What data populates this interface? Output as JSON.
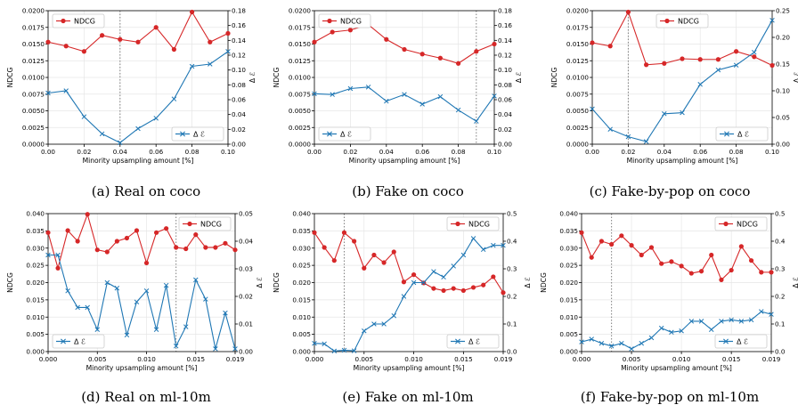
{
  "colors": {
    "ndcg": "#d62728",
    "delta": "#1f77b4",
    "guide": "#7f7f7f",
    "axis": "#000000"
  },
  "chart_data": [
    {
      "type": "line",
      "caption": "(a) Real on coco",
      "xlabel": "Minority upsampling amount [%]",
      "ylabel_left": "NDCG",
      "ylabel_right": "Δ ℰ",
      "xlim": [
        0,
        0.1
      ],
      "ylim_left": [
        0,
        0.02
      ],
      "ylim_right": [
        0,
        0.18
      ],
      "x_ticks": [
        0,
        0.02,
        0.04,
        0.06,
        0.08,
        0.1
      ],
      "x_tick_labels": [
        "0.00",
        "0.02",
        "0.04",
        "0.06",
        "0.08",
        "0.10"
      ],
      "y_left_ticks": [
        0,
        0.0025,
        0.005,
        0.0075,
        0.01,
        0.0125,
        0.015,
        0.0175,
        0.02
      ],
      "y_left_tick_labels": [
        "0.0000",
        "0.0025",
        "0.0050",
        "0.0075",
        "0.0100",
        "0.0125",
        "0.0150",
        "0.0175",
        "0.0200"
      ],
      "y_right_ticks": [
        0,
        0.02,
        0.04,
        0.06,
        0.08,
        0.1,
        0.12,
        0.14,
        0.16,
        0.18
      ],
      "y_right_tick_labels": [
        "0.00",
        "0.02",
        "0.04",
        "0.06",
        "0.08",
        "0.10",
        "0.12",
        "0.14",
        "0.16",
        "0.18"
      ],
      "vline": 0.04,
      "grid": true,
      "legend": {
        "ndcg_position": "top-left",
        "delta_position": "bottom-right"
      },
      "x": [
        0,
        0.01,
        0.02,
        0.03,
        0.04,
        0.05,
        0.06,
        0.07,
        0.08,
        0.09,
        0.1
      ],
      "series": [
        {
          "name": "NDCG",
          "axis": "left",
          "marker": "circle",
          "values": [
            0.0153,
            0.0147,
            0.0139,
            0.0163,
            0.0157,
            0.0153,
            0.0175,
            0.0142,
            0.0198,
            0.0153,
            0.0166
          ]
        },
        {
          "name": "Δ ℰ",
          "axis": "right",
          "marker": "x",
          "values": [
            0.069,
            0.072,
            0.037,
            0.014,
            0.002,
            0.021,
            0.035,
            0.061,
            0.105,
            0.108,
            0.125
          ]
        }
      ]
    },
    {
      "type": "line",
      "caption": "(b) Fake on coco",
      "xlabel": "Minority upsampling amount [%]",
      "ylabel_left": "NDCG",
      "ylabel_right": "Δ ℰ",
      "xlim": [
        0,
        0.1
      ],
      "ylim_left": [
        0,
        0.02
      ],
      "ylim_right": [
        0,
        0.18
      ],
      "x_ticks": [
        0,
        0.02,
        0.04,
        0.06,
        0.08,
        0.1
      ],
      "x_tick_labels": [
        "0.00",
        "0.02",
        "0.04",
        "0.06",
        "0.08",
        "0.10"
      ],
      "y_left_ticks": [
        0,
        0.0025,
        0.005,
        0.0075,
        0.01,
        0.0125,
        0.015,
        0.0175,
        0.02
      ],
      "y_left_tick_labels": [
        "0.0000",
        "0.0025",
        "0.0050",
        "0.0075",
        "0.0100",
        "0.0125",
        "0.0150",
        "0.0175",
        "0.0200"
      ],
      "y_right_ticks": [
        0,
        0.02,
        0.04,
        0.06,
        0.08,
        0.1,
        0.12,
        0.14,
        0.16,
        0.18
      ],
      "y_right_tick_labels": [
        "0.00",
        "0.02",
        "0.04",
        "0.06",
        "0.08",
        "0.10",
        "0.12",
        "0.14",
        "0.16",
        "0.18"
      ],
      "vline": 0.09,
      "grid": true,
      "legend": {
        "ndcg_position": "top-left",
        "delta_position": "bottom-left"
      },
      "x": [
        0,
        0.01,
        0.02,
        0.03,
        0.04,
        0.05,
        0.06,
        0.07,
        0.08,
        0.09,
        0.1
      ],
      "series": [
        {
          "name": "NDCG",
          "axis": "left",
          "marker": "circle",
          "values": [
            0.0153,
            0.0168,
            0.0171,
            0.0179,
            0.0157,
            0.0142,
            0.0135,
            0.0129,
            0.0121,
            0.0139,
            0.015
          ]
        },
        {
          "name": "Δ ℰ",
          "axis": "right",
          "marker": "x",
          "values": [
            0.068,
            0.067,
            0.075,
            0.077,
            0.058,
            0.067,
            0.054,
            0.064,
            0.046,
            0.031,
            0.065
          ]
        }
      ]
    },
    {
      "type": "line",
      "caption": "(c) Fake-by-pop on coco",
      "xlabel": "Minority upsampling amount [%]",
      "ylabel_left": "NDCG",
      "ylabel_right": "Δ ℰ",
      "xlim": [
        0,
        0.1
      ],
      "ylim_left": [
        0,
        0.02
      ],
      "ylim_right": [
        0,
        0.25
      ],
      "x_ticks": [
        0,
        0.02,
        0.04,
        0.06,
        0.08,
        0.1
      ],
      "x_tick_labels": [
        "0.00",
        "0.02",
        "0.04",
        "0.06",
        "0.08",
        "0.10"
      ],
      "y_left_ticks": [
        0,
        0.0025,
        0.005,
        0.0075,
        0.01,
        0.0125,
        0.015,
        0.0175,
        0.02
      ],
      "y_left_tick_labels": [
        "0.0000",
        "0.0025",
        "0.0050",
        "0.0075",
        "0.0100",
        "0.0125",
        "0.0150",
        "0.0175",
        "0.0200"
      ],
      "y_right_ticks": [
        0,
        0.05,
        0.1,
        0.15,
        0.2,
        0.25
      ],
      "y_right_tick_labels": [
        "0.00",
        "0.05",
        "0.10",
        "0.15",
        "0.20",
        "0.25"
      ],
      "vline": 0.02,
      "grid": true,
      "legend": {
        "ndcg_position": "top-center",
        "delta_position": "bottom-right"
      },
      "x": [
        0,
        0.01,
        0.02,
        0.03,
        0.04,
        0.05,
        0.06,
        0.07,
        0.08,
        0.09,
        0.1
      ],
      "series": [
        {
          "name": "NDCG",
          "axis": "left",
          "marker": "circle",
          "values": [
            0.0152,
            0.0147,
            0.0198,
            0.0119,
            0.0121,
            0.0128,
            0.0127,
            0.0127,
            0.0139,
            0.0131,
            0.0118
          ]
        },
        {
          "name": "Δ ℰ",
          "axis": "right",
          "marker": "x",
          "values": [
            0.066,
            0.028,
            0.014,
            0.005,
            0.057,
            0.059,
            0.112,
            0.139,
            0.148,
            0.172,
            0.232
          ]
        }
      ]
    },
    {
      "type": "line",
      "caption": "(d) Real on ml-10m",
      "xlabel": "Minority upsampling amount [%]",
      "ylabel_left": "NDCG",
      "ylabel_right": "Δ ℰ",
      "xlim": [
        0,
        0.019
      ],
      "ylim_left": [
        0,
        0.04
      ],
      "ylim_right": [
        0,
        0.05
      ],
      "x_ticks": [
        0,
        0.005,
        0.01,
        0.015,
        0.019
      ],
      "x_tick_labels": [
        "0.000",
        "0.005",
        "0.010",
        "0.015",
        "0.019"
      ],
      "y_left_ticks": [
        0,
        0.005,
        0.01,
        0.015,
        0.02,
        0.025,
        0.03,
        0.035,
        0.04
      ],
      "y_left_tick_labels": [
        "0.000",
        "0.005",
        "0.010",
        "0.015",
        "0.020",
        "0.025",
        "0.030",
        "0.035",
        "0.040"
      ],
      "y_right_ticks": [
        0,
        0.01,
        0.02,
        0.03,
        0.04,
        0.05
      ],
      "y_right_tick_labels": [
        "0.00",
        "0.01",
        "0.02",
        "0.03",
        "0.04",
        "0.05"
      ],
      "vline": 0.013,
      "grid": true,
      "legend": {
        "ndcg_position": "top-right",
        "delta_position": "bottom-left"
      },
      "x": [
        0,
        0.001,
        0.002,
        0.003,
        0.004,
        0.005,
        0.006,
        0.007,
        0.008,
        0.009,
        0.01,
        0.011,
        0.012,
        0.013,
        0.014,
        0.015,
        0.016,
        0.017,
        0.018,
        0.019
      ],
      "series": [
        {
          "name": "NDCG",
          "axis": "left",
          "marker": "circle",
          "values": [
            0.0345,
            0.0242,
            0.0351,
            0.032,
            0.0398,
            0.0295,
            0.0289,
            0.032,
            0.0329,
            0.0351,
            0.0257,
            0.0345,
            0.0357,
            0.0302,
            0.0298,
            0.0339,
            0.0302,
            0.0302,
            0.0314,
            0.0295
          ]
        },
        {
          "name": "Δ ℰ",
          "axis": "right",
          "marker": "x",
          "values": [
            0.035,
            0.035,
            0.022,
            0.016,
            0.016,
            0.008,
            0.025,
            0.023,
            0.006,
            0.018,
            0.022,
            0.008,
            0.024,
            0.002,
            0.009,
            0.026,
            0.019,
            0.001,
            0.014,
            0.001
          ]
        }
      ]
    },
    {
      "type": "line",
      "caption": "(e) Fake on ml-10m",
      "xlabel": "Minority upsampling amount [%]",
      "ylabel_left": "NDCG",
      "ylabel_right": "Δ ℰ",
      "xlim": [
        0,
        0.019
      ],
      "ylim_left": [
        0,
        0.04
      ],
      "ylim_right": [
        0,
        0.5
      ],
      "x_ticks": [
        0,
        0.005,
        0.01,
        0.015,
        0.019
      ],
      "x_tick_labels": [
        "0.000",
        "0.005",
        "0.010",
        "0.015",
        "0.019"
      ],
      "y_left_ticks": [
        0,
        0.005,
        0.01,
        0.015,
        0.02,
        0.025,
        0.03,
        0.035,
        0.04
      ],
      "y_left_tick_labels": [
        "0.000",
        "0.005",
        "0.010",
        "0.015",
        "0.020",
        "0.025",
        "0.030",
        "0.035",
        "0.040"
      ],
      "y_right_ticks": [
        0,
        0.1,
        0.2,
        0.3,
        0.4,
        0.5
      ],
      "y_right_tick_labels": [
        "0.0",
        "0.1",
        "0.2",
        "0.3",
        "0.4",
        "0.5"
      ],
      "vline": 0.003,
      "grid": true,
      "legend": {
        "ndcg_position": "top-right",
        "delta_position": "bottom-right"
      },
      "x": [
        0,
        0.001,
        0.002,
        0.003,
        0.004,
        0.005,
        0.006,
        0.007,
        0.008,
        0.009,
        0.01,
        0.011,
        0.012,
        0.013,
        0.014,
        0.015,
        0.016,
        0.017,
        0.018,
        0.019
      ],
      "series": [
        {
          "name": "NDCG",
          "axis": "left",
          "marker": "circle",
          "values": [
            0.0345,
            0.0302,
            0.0264,
            0.0345,
            0.032,
            0.0242,
            0.028,
            0.0258,
            0.0289,
            0.0202,
            0.0223,
            0.0199,
            0.0183,
            0.0177,
            0.0183,
            0.0177,
            0.0186,
            0.0193,
            0.0217,
            0.0171
          ]
        },
        {
          "name": "Δ ℰ",
          "axis": "right",
          "marker": "x",
          "values": [
            0.03,
            0.028,
            0.002,
            0.005,
            0.003,
            0.075,
            0.1,
            0.1,
            0.13,
            0.2,
            0.25,
            0.25,
            0.29,
            0.27,
            0.31,
            0.35,
            0.41,
            0.37,
            0.385,
            0.385
          ]
        }
      ]
    },
    {
      "type": "line",
      "caption": "(f) Fake-by-pop on ml-10m",
      "xlabel": "Minority upsampling amount [%]",
      "ylabel_left": "NDCG",
      "ylabel_right": "Δ ℰ",
      "xlim": [
        0,
        0.019
      ],
      "ylim_left": [
        0,
        0.04
      ],
      "ylim_right": [
        0,
        0.5
      ],
      "x_ticks": [
        0,
        0.005,
        0.01,
        0.015,
        0.019
      ],
      "x_tick_labels": [
        "0.000",
        "0.005",
        "0.010",
        "0.015",
        "0.019"
      ],
      "y_left_ticks": [
        0,
        0.005,
        0.01,
        0.015,
        0.02,
        0.025,
        0.03,
        0.035,
        0.04
      ],
      "y_left_tick_labels": [
        "0.000",
        "0.005",
        "0.010",
        "0.015",
        "0.020",
        "0.025",
        "0.030",
        "0.035",
        "0.040"
      ],
      "y_right_ticks": [
        0,
        0.1,
        0.2,
        0.3,
        0.4,
        0.5
      ],
      "y_right_tick_labels": [
        "0.0",
        "0.1",
        "0.2",
        "0.3",
        "0.4",
        "0.5"
      ],
      "vline": 0.003,
      "grid": true,
      "legend": {
        "ndcg_position": "top-right",
        "delta_position": "bottom-right"
      },
      "x": [
        0,
        0.001,
        0.002,
        0.003,
        0.004,
        0.005,
        0.006,
        0.007,
        0.008,
        0.009,
        0.01,
        0.011,
        0.012,
        0.013,
        0.014,
        0.015,
        0.016,
        0.017,
        0.018,
        0.019
      ],
      "series": [
        {
          "name": "NDCG",
          "axis": "left",
          "marker": "circle",
          "values": [
            0.0345,
            0.0273,
            0.032,
            0.0311,
            0.0336,
            0.0308,
            0.028,
            0.0302,
            0.0255,
            0.0261,
            0.0248,
            0.0227,
            0.0233,
            0.028,
            0.0208,
            0.0236,
            0.0305,
            0.0264,
            0.023,
            0.023
          ]
        },
        {
          "name": "Δ ℰ",
          "axis": "right",
          "marker": "x",
          "values": [
            0.035,
            0.045,
            0.03,
            0.02,
            0.03,
            0.01,
            0.03,
            0.05,
            0.085,
            0.07,
            0.075,
            0.11,
            0.11,
            0.08,
            0.11,
            0.115,
            0.11,
            0.115,
            0.145,
            0.135
          ]
        }
      ]
    }
  ]
}
